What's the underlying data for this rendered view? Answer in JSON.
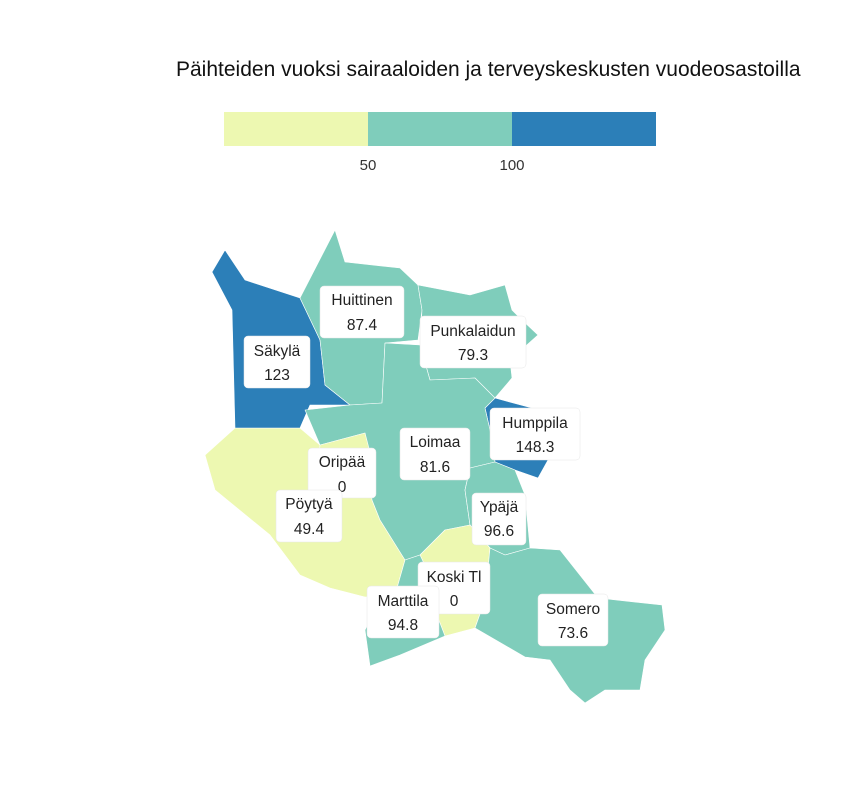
{
  "title": "Päihteiden vuoksi sairaaloiden ja terveyskeskusten vuodeosastoilla",
  "legend": {
    "colors": [
      "#edf8b1",
      "#7fcdbb",
      "#2c7fb8"
    ],
    "breaks": [
      "50",
      "100"
    ]
  },
  "colors": {
    "low": "#edf8b1",
    "mid": "#7fcdbb",
    "high": "#2c7fb8"
  },
  "chart_data": {
    "type": "choropleth",
    "bins": [
      {
        "max": 50,
        "color": "#edf8b1"
      },
      {
        "min": 50,
        "max": 100,
        "color": "#7fcdbb"
      },
      {
        "min": 100,
        "color": "#2c7fb8"
      }
    ],
    "regions": [
      {
        "name": "Säkylä",
        "value": "123"
      },
      {
        "name": "Huittinen",
        "value": "87.4"
      },
      {
        "name": "Punkalaidun",
        "value": "79.3"
      },
      {
        "name": "Humppila",
        "value": "148.3"
      },
      {
        "name": "Loimaa",
        "value": "81.6"
      },
      {
        "name": "Oripää",
        "value": "0"
      },
      {
        "name": "Pöytyä",
        "value": "49.4"
      },
      {
        "name": "Ypäjä",
        "value": "96.6"
      },
      {
        "name": "Koski Tl",
        "value": "0"
      },
      {
        "name": "Marttila",
        "value": "94.8"
      },
      {
        "name": "Somero",
        "value": "73.6"
      }
    ]
  }
}
